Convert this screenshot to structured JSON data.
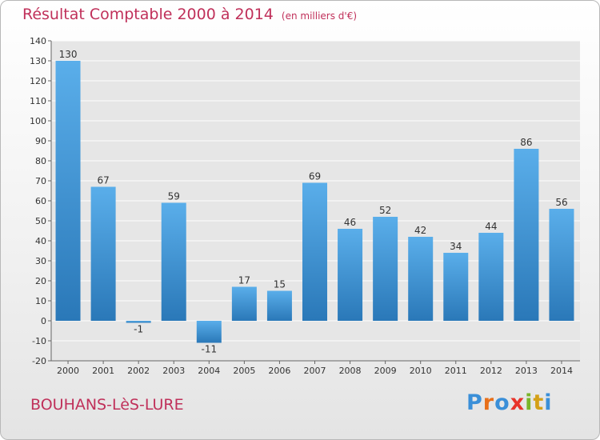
{
  "title": "Résultat Comptable 2000 à 2014",
  "unit_note": "(en milliers d'€)",
  "commune": "BOUHANS-LèS-LURE",
  "brand": {
    "text": "Proxiti",
    "colors": [
      "#3a8fd8",
      "#e8701a",
      "#3a8fd8",
      "#e8332a",
      "#7ab52a",
      "#d4a017",
      "#3a8fd8"
    ]
  },
  "colors": {
    "accent": "#c0305a",
    "bar_top": "#5aaeea",
    "bar_bottom": "#2a78b8",
    "plot_bg": "#e6e6e6",
    "grid": "#ffffff"
  },
  "chart_data": {
    "type": "bar",
    "title": "Résultat Comptable 2000 à 2014",
    "subtitle": "(en milliers d'€)",
    "categories": [
      "2000",
      "2001",
      "2002",
      "2003",
      "2004",
      "2005",
      "2006",
      "2007",
      "2008",
      "2009",
      "2010",
      "2011",
      "2012",
      "2013",
      "2014"
    ],
    "values": [
      130,
      67,
      -1,
      59,
      -11,
      17,
      15,
      69,
      46,
      52,
      42,
      34,
      44,
      86,
      56
    ],
    "data_labels": [
      "130",
      "67",
      "-1",
      "59",
      "-11",
      "17",
      "15",
      "69",
      "46",
      "52",
      "42",
      "34",
      "44",
      "86",
      "56"
    ],
    "ylim": [
      -20,
      140
    ],
    "yticks": [
      -20,
      -10,
      0,
      10,
      20,
      30,
      40,
      50,
      60,
      70,
      80,
      90,
      100,
      110,
      120,
      130,
      140
    ],
    "xlabel": "",
    "ylabel": "",
    "grid": true
  }
}
